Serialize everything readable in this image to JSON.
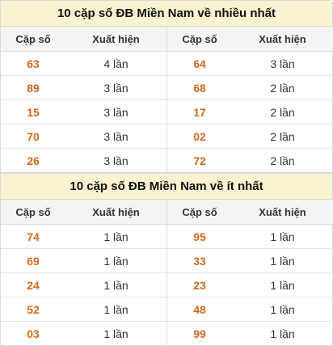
{
  "blocks": [
    {
      "title": "10 cặp số ĐB Miền Nam về nhiều nhất",
      "headers": {
        "pair": "Cặp số",
        "count": "Xuất hiện"
      },
      "left": [
        {
          "pair": "63",
          "count": "4 lần"
        },
        {
          "pair": "89",
          "count": "3 lần"
        },
        {
          "pair": "15",
          "count": "3 lần"
        },
        {
          "pair": "70",
          "count": "3 lần"
        },
        {
          "pair": "26",
          "count": "3 lần"
        }
      ],
      "right": [
        {
          "pair": "64",
          "count": "3 lần"
        },
        {
          "pair": "68",
          "count": "2 lần"
        },
        {
          "pair": "17",
          "count": "2 lần"
        },
        {
          "pair": "02",
          "count": "2 lần"
        },
        {
          "pair": "72",
          "count": "2 lần"
        }
      ]
    },
    {
      "title": "10 cặp số ĐB Miền Nam về ít nhất",
      "headers": {
        "pair": "Cặp số",
        "count": "Xuất hiện"
      },
      "left": [
        {
          "pair": "74",
          "count": "1 lần"
        },
        {
          "pair": "69",
          "count": "1 lần"
        },
        {
          "pair": "24",
          "count": "1 lần"
        },
        {
          "pair": "52",
          "count": "1 lần"
        },
        {
          "pair": "03",
          "count": "1 lần"
        }
      ],
      "right": [
        {
          "pair": "95",
          "count": "1 lần"
        },
        {
          "pair": "33",
          "count": "1 lần"
        },
        {
          "pair": "23",
          "count": "1 lần"
        },
        {
          "pair": "48",
          "count": "1 lần"
        },
        {
          "pair": "99",
          "count": "1 lần"
        }
      ]
    }
  ]
}
